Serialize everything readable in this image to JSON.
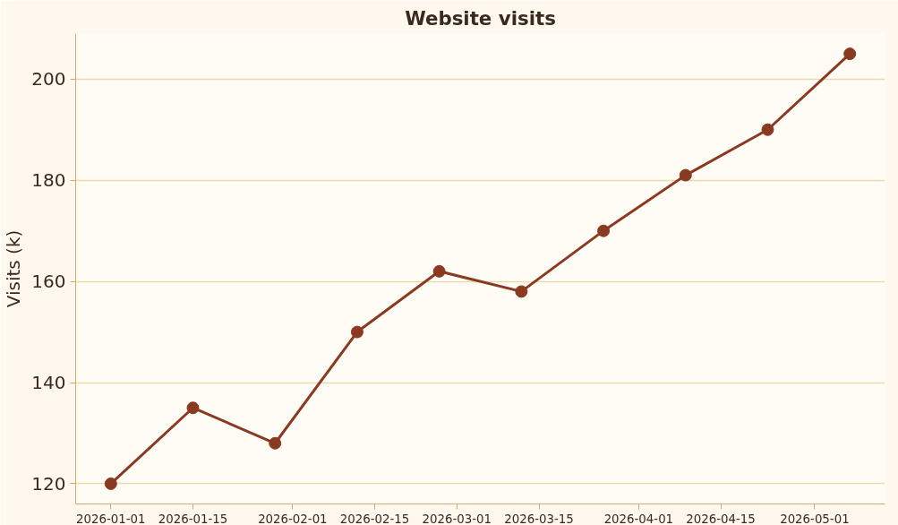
{
  "chart_data": {
    "type": "line",
    "title": "Website visits",
    "ylabel": "Visits (k)",
    "x": [
      "2026-01-01",
      "2026-01-15",
      "2026-01-29",
      "2026-02-12",
      "2026-02-26",
      "2026-03-12",
      "2026-03-26",
      "2026-04-09",
      "2026-04-23",
      "2026-05-07"
    ],
    "series": [
      {
        "color": "#8b3a22",
        "values": [
          120,
          135,
          128,
          150,
          162,
          158,
          170,
          181,
          190,
          205
        ]
      }
    ],
    "xlim": [
      "2025-12-26",
      "2026-05-13"
    ],
    "xticks": [
      "2026-01-01",
      "2026-01-15",
      "2026-02-01",
      "2026-02-15",
      "2026-03-01",
      "2026-03-15",
      "2026-04-01",
      "2026-04-15",
      "2026-05-01"
    ],
    "ylim": [
      116,
      209
    ],
    "yticks": [
      120,
      140,
      160,
      180,
      200
    ],
    "grid": "y",
    "marker": "circle",
    "line_style": "solid"
  }
}
